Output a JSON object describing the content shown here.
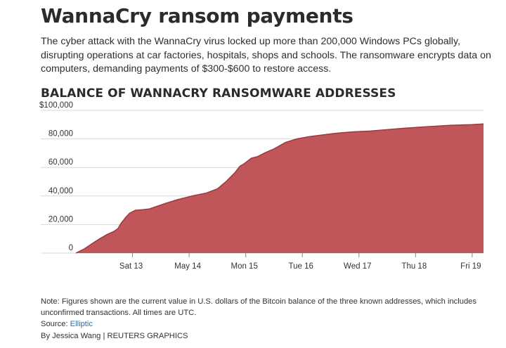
{
  "headline": "WannaCry ransom payments",
  "intro": "The cyber attack with the WannaCry virus locked up more than 200,000 Windows PCs globally, disrupting operations at car factories, hospitals, shops and schools. The ransomware encrypts data on computers, demanding payments of $300-$600 to restore access.",
  "chart_data": {
    "type": "area",
    "title": "BALANCE OF WANNACRY RANSOMWARE ADDRESSES",
    "xlabel": "",
    "ylabel": "",
    "x_ticks": [
      "Sat 13",
      "May 14",
      "Mon 15",
      "Tue 16",
      "Wed 17",
      "Thu 18",
      "Fri 19"
    ],
    "y_ticks": [
      "0",
      "20,000",
      "40,000",
      "60,000",
      "80,000",
      "$100,000"
    ],
    "ylim": [
      0,
      100000
    ],
    "xlim": [
      0,
      7.2
    ],
    "grid": "horizontal",
    "fill_color": "#c0565a",
    "line_color": "#9a3a3e",
    "series": [
      {
        "x": [
          0,
          0.15,
          0.3,
          0.42,
          0.55,
          0.66,
          0.74,
          0.8,
          0.88,
          0.95,
          1.05,
          1.2,
          1.3,
          1.45,
          1.6,
          1.8,
          1.95,
          2.1,
          2.3,
          2.5,
          2.65,
          2.8,
          2.9,
          2.95,
          3.0,
          3.05,
          3.1,
          3.2,
          3.35,
          3.5,
          3.7,
          3.9,
          4.1,
          4.3,
          4.6,
          4.9,
          5.2,
          5.5,
          5.8,
          6.2,
          6.6,
          7.0,
          7.2
        ],
        "y": [
          0,
          3000,
          7000,
          10000,
          13000,
          15000,
          17000,
          21000,
          25000,
          28000,
          30000,
          30500,
          31000,
          33000,
          35000,
          37500,
          39000,
          40500,
          42000,
          45000,
          50000,
          56000,
          61000,
          62000,
          63500,
          65000,
          66500,
          67500,
          70500,
          73000,
          77500,
          80000,
          81500,
          82500,
          84000,
          85000,
          85500,
          86500,
          87500,
          88500,
          89500,
          90000,
          90500
        ]
      }
    ]
  },
  "note": "Note: Figures shown are the current value in U.S. dollars of the Bitcoin balance of the three known addresses, which includes unconfirmed transactions. All times are UTC.",
  "source_label": "Source: ",
  "source_link": "Elliptic",
  "byline": "By Jessica Wang | REUTERS GRAPHICS"
}
